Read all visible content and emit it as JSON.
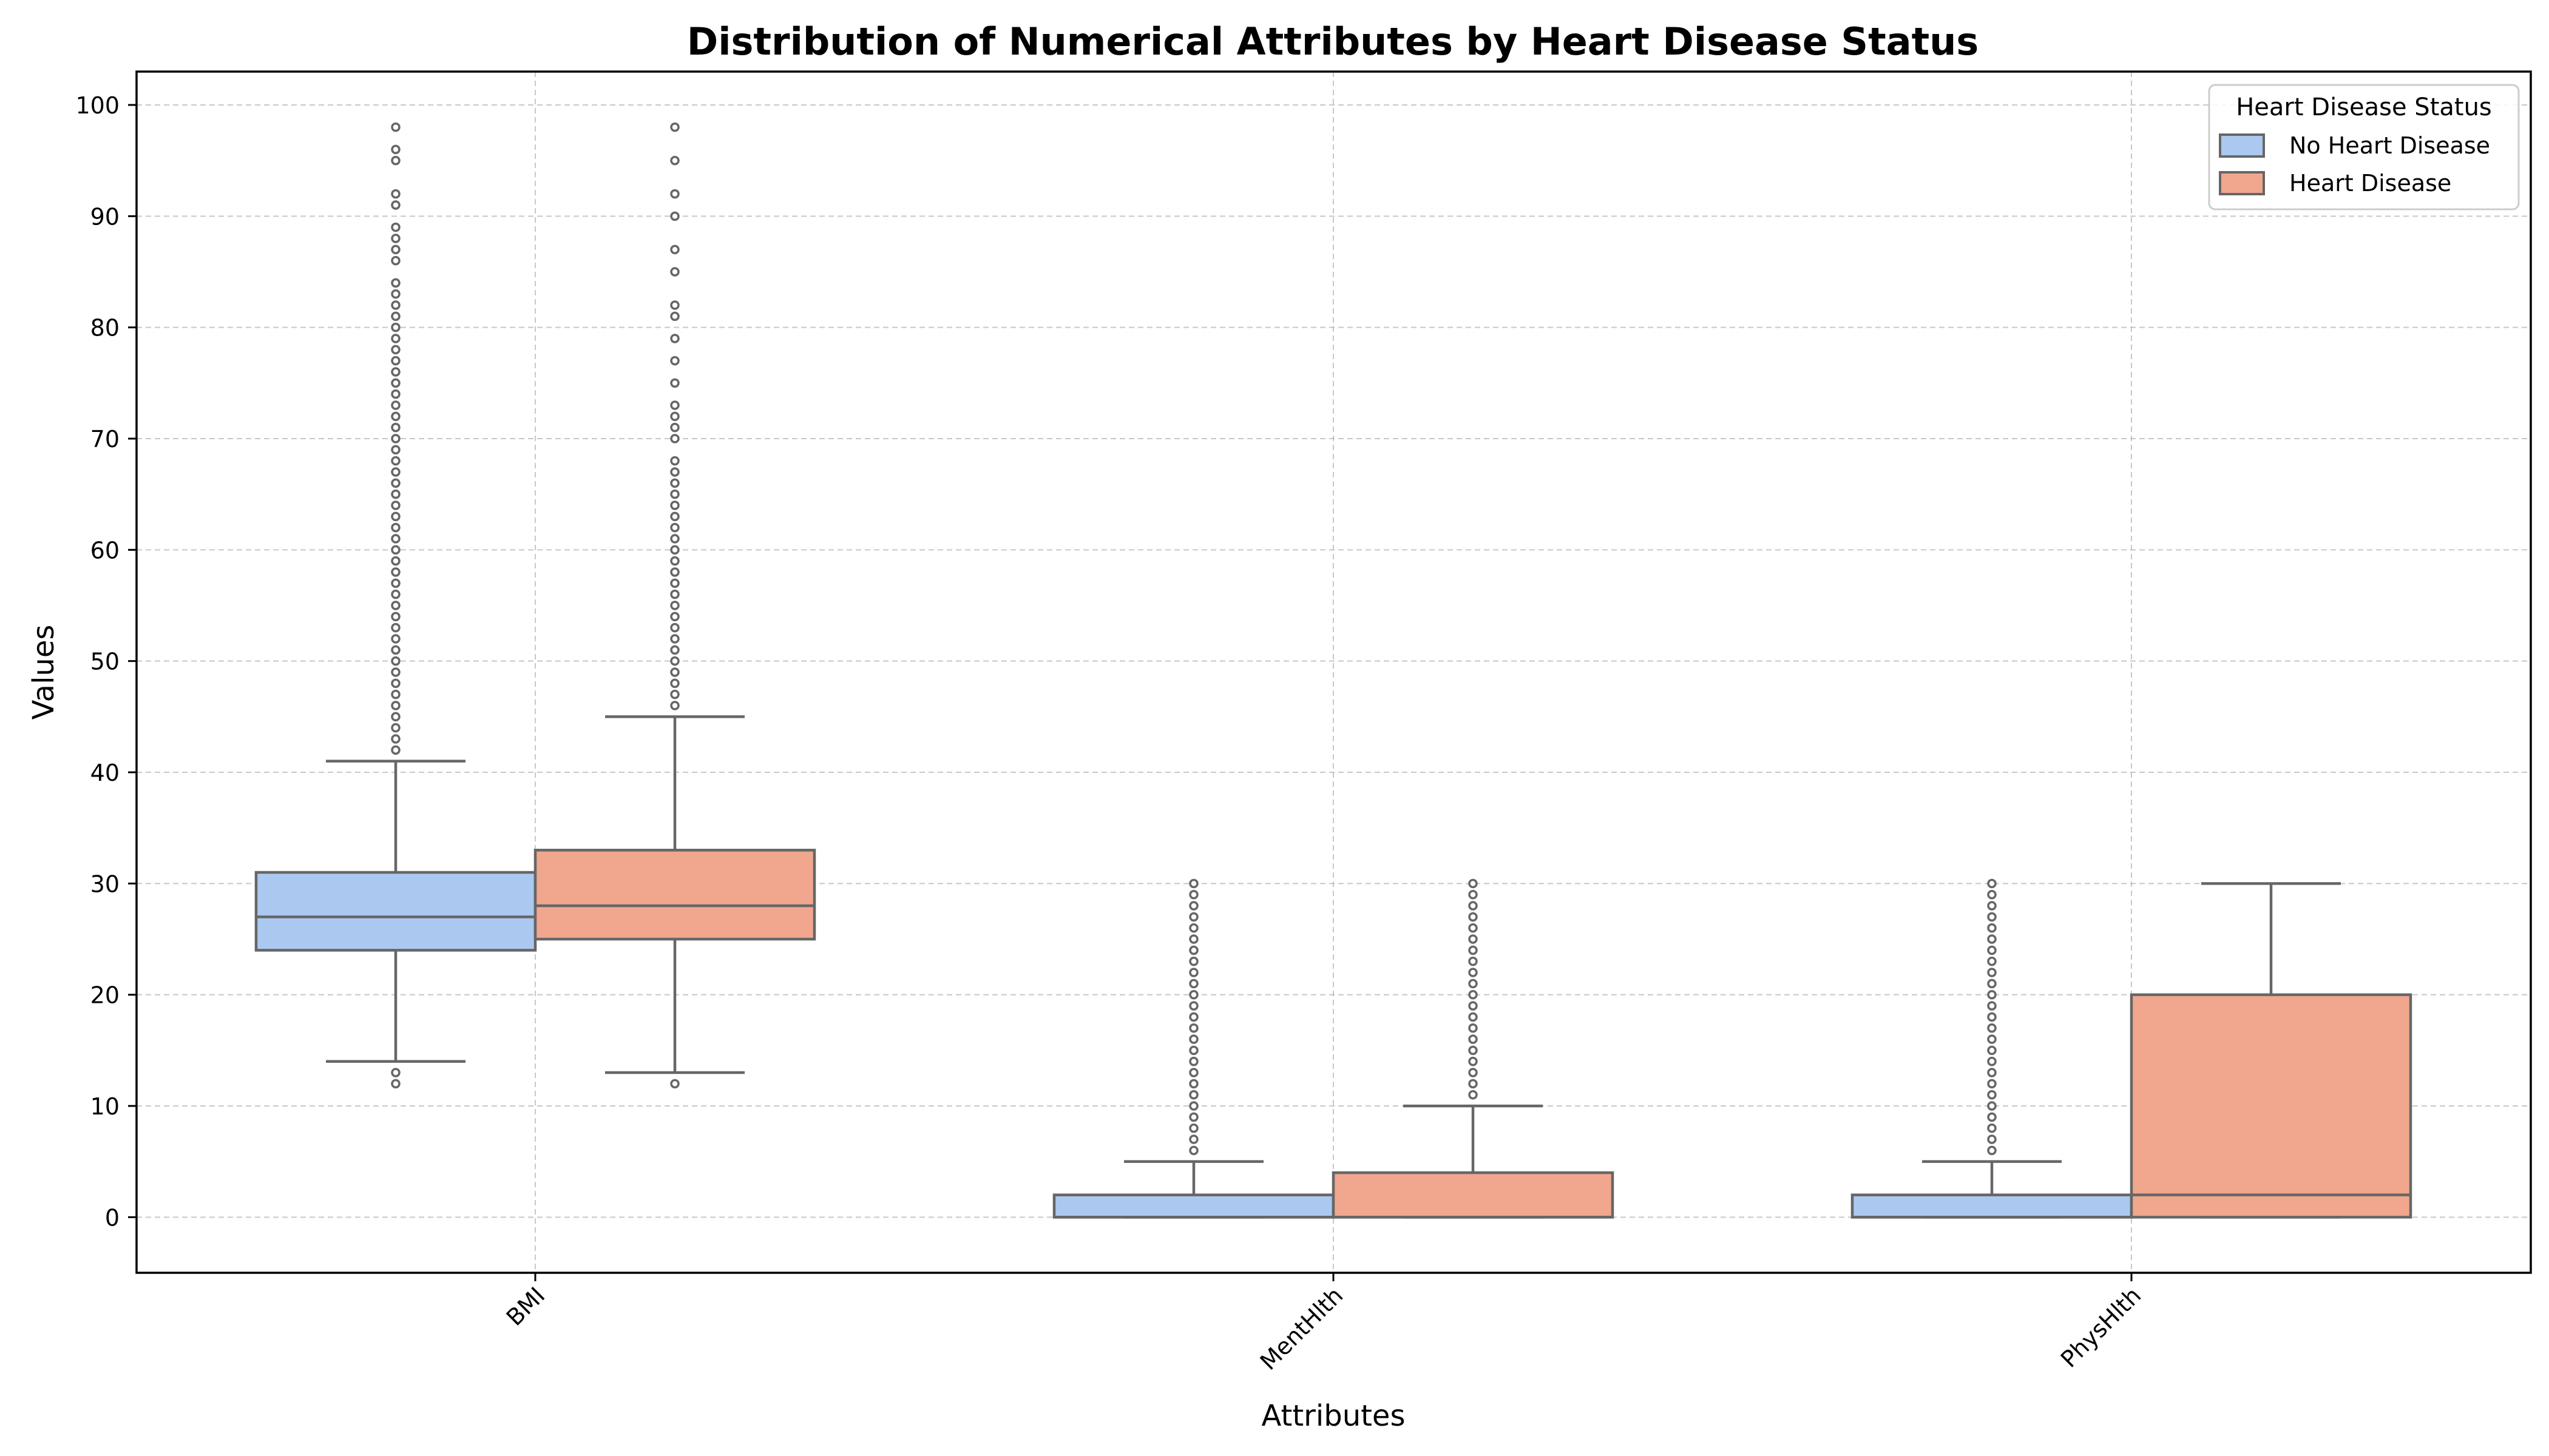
{
  "chart_data": {
    "type": "box",
    "title": "Distribution of Numerical Attributes by Heart Disease Status",
    "xlabel": "Attributes",
    "ylabel": "Values",
    "categories": [
      "BMI",
      "MentHlth",
      "PhysHlth"
    ],
    "ylim": [
      -5,
      103
    ],
    "yticks": [
      0,
      10,
      20,
      30,
      40,
      50,
      60,
      70,
      80,
      90,
      100
    ],
    "grid": true,
    "legend": {
      "title": "Heart Disease Status",
      "position": "top-right"
    },
    "series": [
      {
        "name": "No Heart Disease",
        "color": "#abc9f0",
        "boxes": [
          {
            "whisker_low": 14,
            "q1": 24,
            "median": 27,
            "q3": 31,
            "whisker_high": 41,
            "outliers": [
              12,
              13,
              42,
              43,
              44,
              45,
              46,
              47,
              48,
              49,
              50,
              51,
              52,
              53,
              54,
              55,
              56,
              57,
              58,
              59,
              60,
              61,
              62,
              63,
              64,
              65,
              66,
              67,
              68,
              69,
              70,
              71,
              72,
              73,
              74,
              75,
              76,
              77,
              78,
              79,
              80,
              81,
              82,
              83,
              84,
              86,
              87,
              88,
              89,
              91,
              92,
              95,
              96,
              98
            ]
          },
          {
            "whisker_low": 0,
            "q1": 0,
            "median": 0,
            "q3": 2,
            "whisker_high": 5,
            "outliers": [
              6,
              7,
              8,
              9,
              10,
              11,
              12,
              13,
              14,
              15,
              16,
              17,
              18,
              19,
              20,
              21,
              22,
              23,
              24,
              25,
              26,
              27,
              28,
              29,
              30
            ]
          },
          {
            "whisker_low": 0,
            "q1": 0,
            "median": 0,
            "q3": 2,
            "whisker_high": 5,
            "outliers": [
              6,
              7,
              8,
              9,
              10,
              11,
              12,
              13,
              14,
              15,
              16,
              17,
              18,
              19,
              20,
              21,
              22,
              23,
              24,
              25,
              26,
              27,
              28,
              29,
              30
            ]
          }
        ]
      },
      {
        "name": "Heart Disease",
        "color": "#f0a78e",
        "boxes": [
          {
            "whisker_low": 13,
            "q1": 25,
            "median": 28,
            "q3": 33,
            "whisker_high": 45,
            "outliers": [
              12,
              46,
              47,
              48,
              49,
              50,
              51,
              52,
              53,
              54,
              55,
              56,
              57,
              58,
              59,
              60,
              61,
              62,
              63,
              64,
              65,
              66,
              67,
              68,
              70,
              71,
              72,
              73,
              75,
              77,
              79,
              81,
              82,
              85,
              87,
              90,
              92,
              95,
              98
            ]
          },
          {
            "whisker_low": 0,
            "q1": 0,
            "median": 0,
            "q3": 4,
            "whisker_high": 10,
            "outliers": [
              11,
              12,
              13,
              14,
              15,
              16,
              17,
              18,
              19,
              20,
              21,
              22,
              23,
              24,
              25,
              26,
              27,
              28,
              29,
              30
            ]
          },
          {
            "whisker_low": 0,
            "q1": 0,
            "median": 2,
            "q3": 20,
            "whisker_high": 30,
            "outliers": []
          }
        ]
      }
    ]
  }
}
